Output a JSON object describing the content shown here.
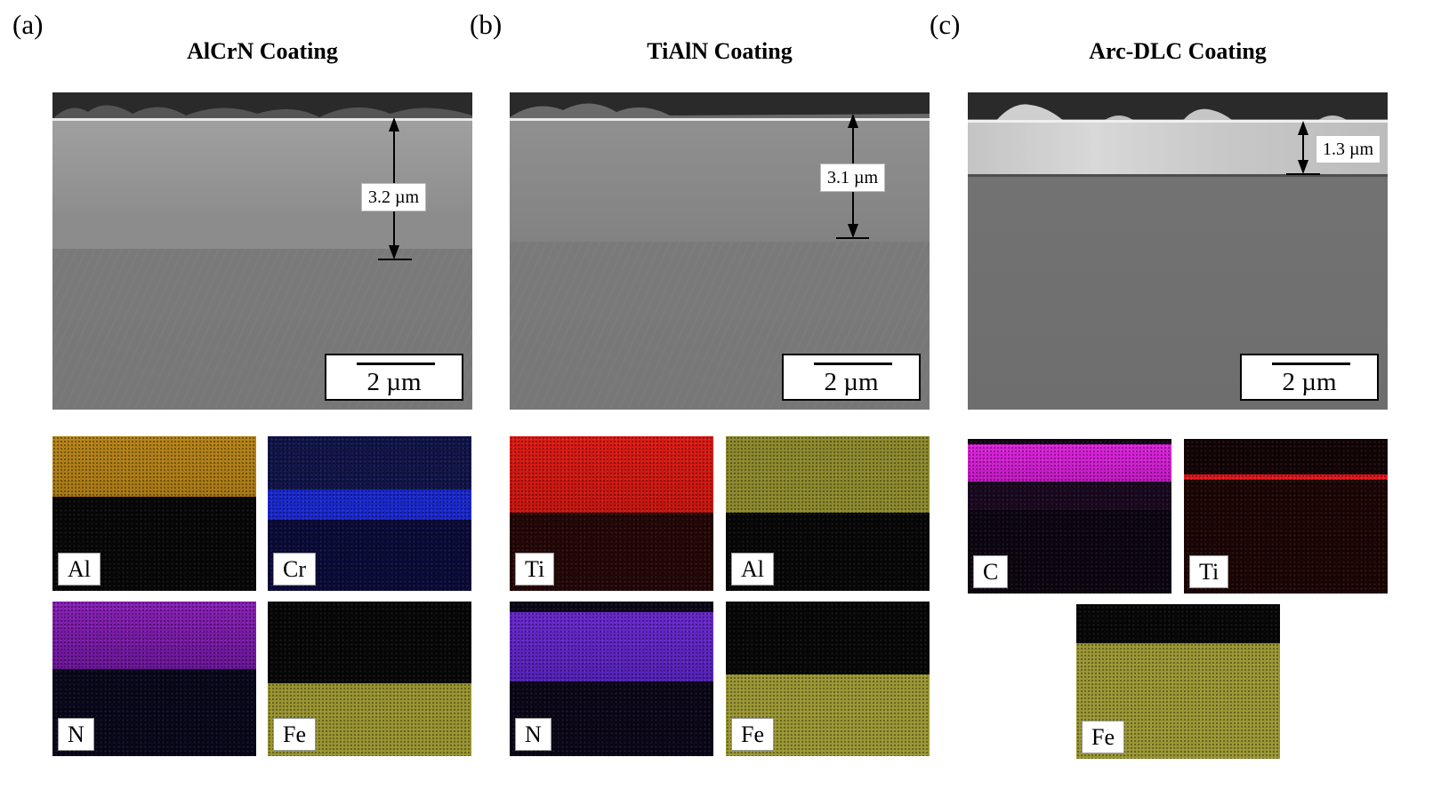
{
  "panels": [
    {
      "label": "(a)",
      "title": "AlCrN Coating",
      "thickness": "3.2 µm",
      "scale": "2 µm",
      "maps": [
        {
          "element": "Al",
          "color": "#c08a1a"
        },
        {
          "element": "Cr",
          "color": "#1a2ad8"
        },
        {
          "element": "N",
          "color": "#8a1ab8"
        },
        {
          "element": "Fe",
          "color": "#a8a332"
        }
      ]
    },
    {
      "label": "(b)",
      "title": "TiAlN Coating",
      "thickness": "3.1 µm",
      "scale": "2 µm",
      "maps": [
        {
          "element": "Ti",
          "color": "#e01a14"
        },
        {
          "element": "Al",
          "color": "#9a9430"
        },
        {
          "element": "N",
          "color": "#6a2ad8"
        },
        {
          "element": "Fe",
          "color": "#a4a038"
        }
      ]
    },
    {
      "label": "(c)",
      "title": "Arc-DLC Coating",
      "thickness": "1.3 µm",
      "scale": "2 µm",
      "maps": [
        {
          "element": "C",
          "color": "#e020e0"
        },
        {
          "element": "Ti",
          "color": "#e8141a"
        },
        {
          "element": "Fe",
          "color": "#a8a336"
        }
      ]
    }
  ]
}
